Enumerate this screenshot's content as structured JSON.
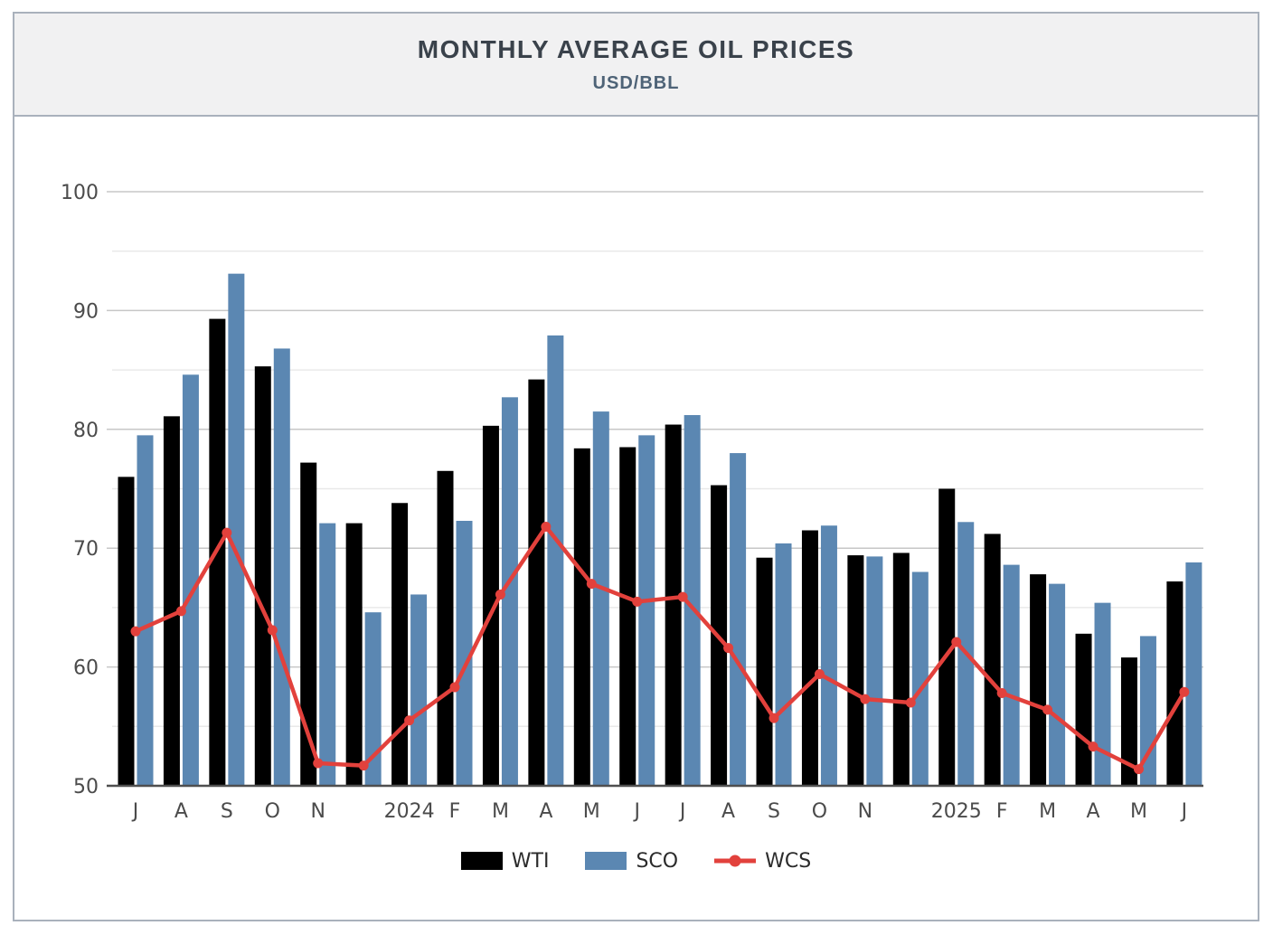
{
  "header": {
    "title": "MONTHLY AVERAGE OIL PRICES",
    "subtitle": "USD/BBL"
  },
  "chart_data": {
    "type": "bar",
    "title": "MONTHLY AVERAGE OIL PRICES",
    "subtitle": "USD/BBL",
    "xlabel": "",
    "ylabel": "USD/BBL",
    "categories": [
      "J",
      "A",
      "S",
      "O",
      "N",
      "",
      "2024",
      "F",
      "M",
      "A",
      "M",
      "J",
      "J",
      "A",
      "S",
      "O",
      "N",
      "",
      "2025",
      "F",
      "M",
      "A",
      "M",
      "J"
    ],
    "series": [
      {
        "name": "WTI",
        "type": "bar",
        "color": "#000000",
        "values": [
          76.0,
          81.1,
          89.3,
          85.3,
          77.2,
          72.1,
          73.8,
          76.5,
          80.3,
          84.2,
          78.4,
          78.5,
          80.4,
          75.3,
          69.2,
          71.5,
          69.4,
          69.6,
          75.0,
          71.2,
          67.8,
          62.8,
          60.8,
          67.2
        ]
      },
      {
        "name": "SCO",
        "type": "bar",
        "color": "#5b87b2",
        "values": [
          79.5,
          84.6,
          93.1,
          86.8,
          72.1,
          64.6,
          66.1,
          72.3,
          82.7,
          87.9,
          81.5,
          79.5,
          81.2,
          78.0,
          70.4,
          71.9,
          69.3,
          68.0,
          72.2,
          68.6,
          67.0,
          65.4,
          62.6,
          68.8
        ]
      },
      {
        "name": "WCS",
        "type": "line",
        "color": "#e2413c",
        "values": [
          63.0,
          64.7,
          71.3,
          63.1,
          51.9,
          51.7,
          55.5,
          58.3,
          66.1,
          71.8,
          67.0,
          65.5,
          65.9,
          61.6,
          55.7,
          59.4,
          57.3,
          57.0,
          62.1,
          57.8,
          56.4,
          53.3,
          51.4,
          57.9
        ]
      }
    ],
    "ylim": [
      50,
      102
    ],
    "yticks": [
      50,
      60,
      70,
      80,
      90,
      100
    ],
    "minor_gridlines": [
      55,
      65,
      75,
      85,
      95
    ],
    "grid": "on",
    "legend_position": "bottom"
  },
  "colors": {
    "panel_border": "#a9b1bc",
    "header_bg": "#f1f1f2",
    "title": "#3a424b",
    "subtitle": "#4e6377",
    "axis_text": "#4b4b4b",
    "major_grid": "#c7c7c7",
    "minor_grid": "#e9e9e9",
    "axis_line": "#4f4f4f",
    "wti": "#000000",
    "sco": "#5b87b2",
    "wcs": "#e2413c"
  }
}
